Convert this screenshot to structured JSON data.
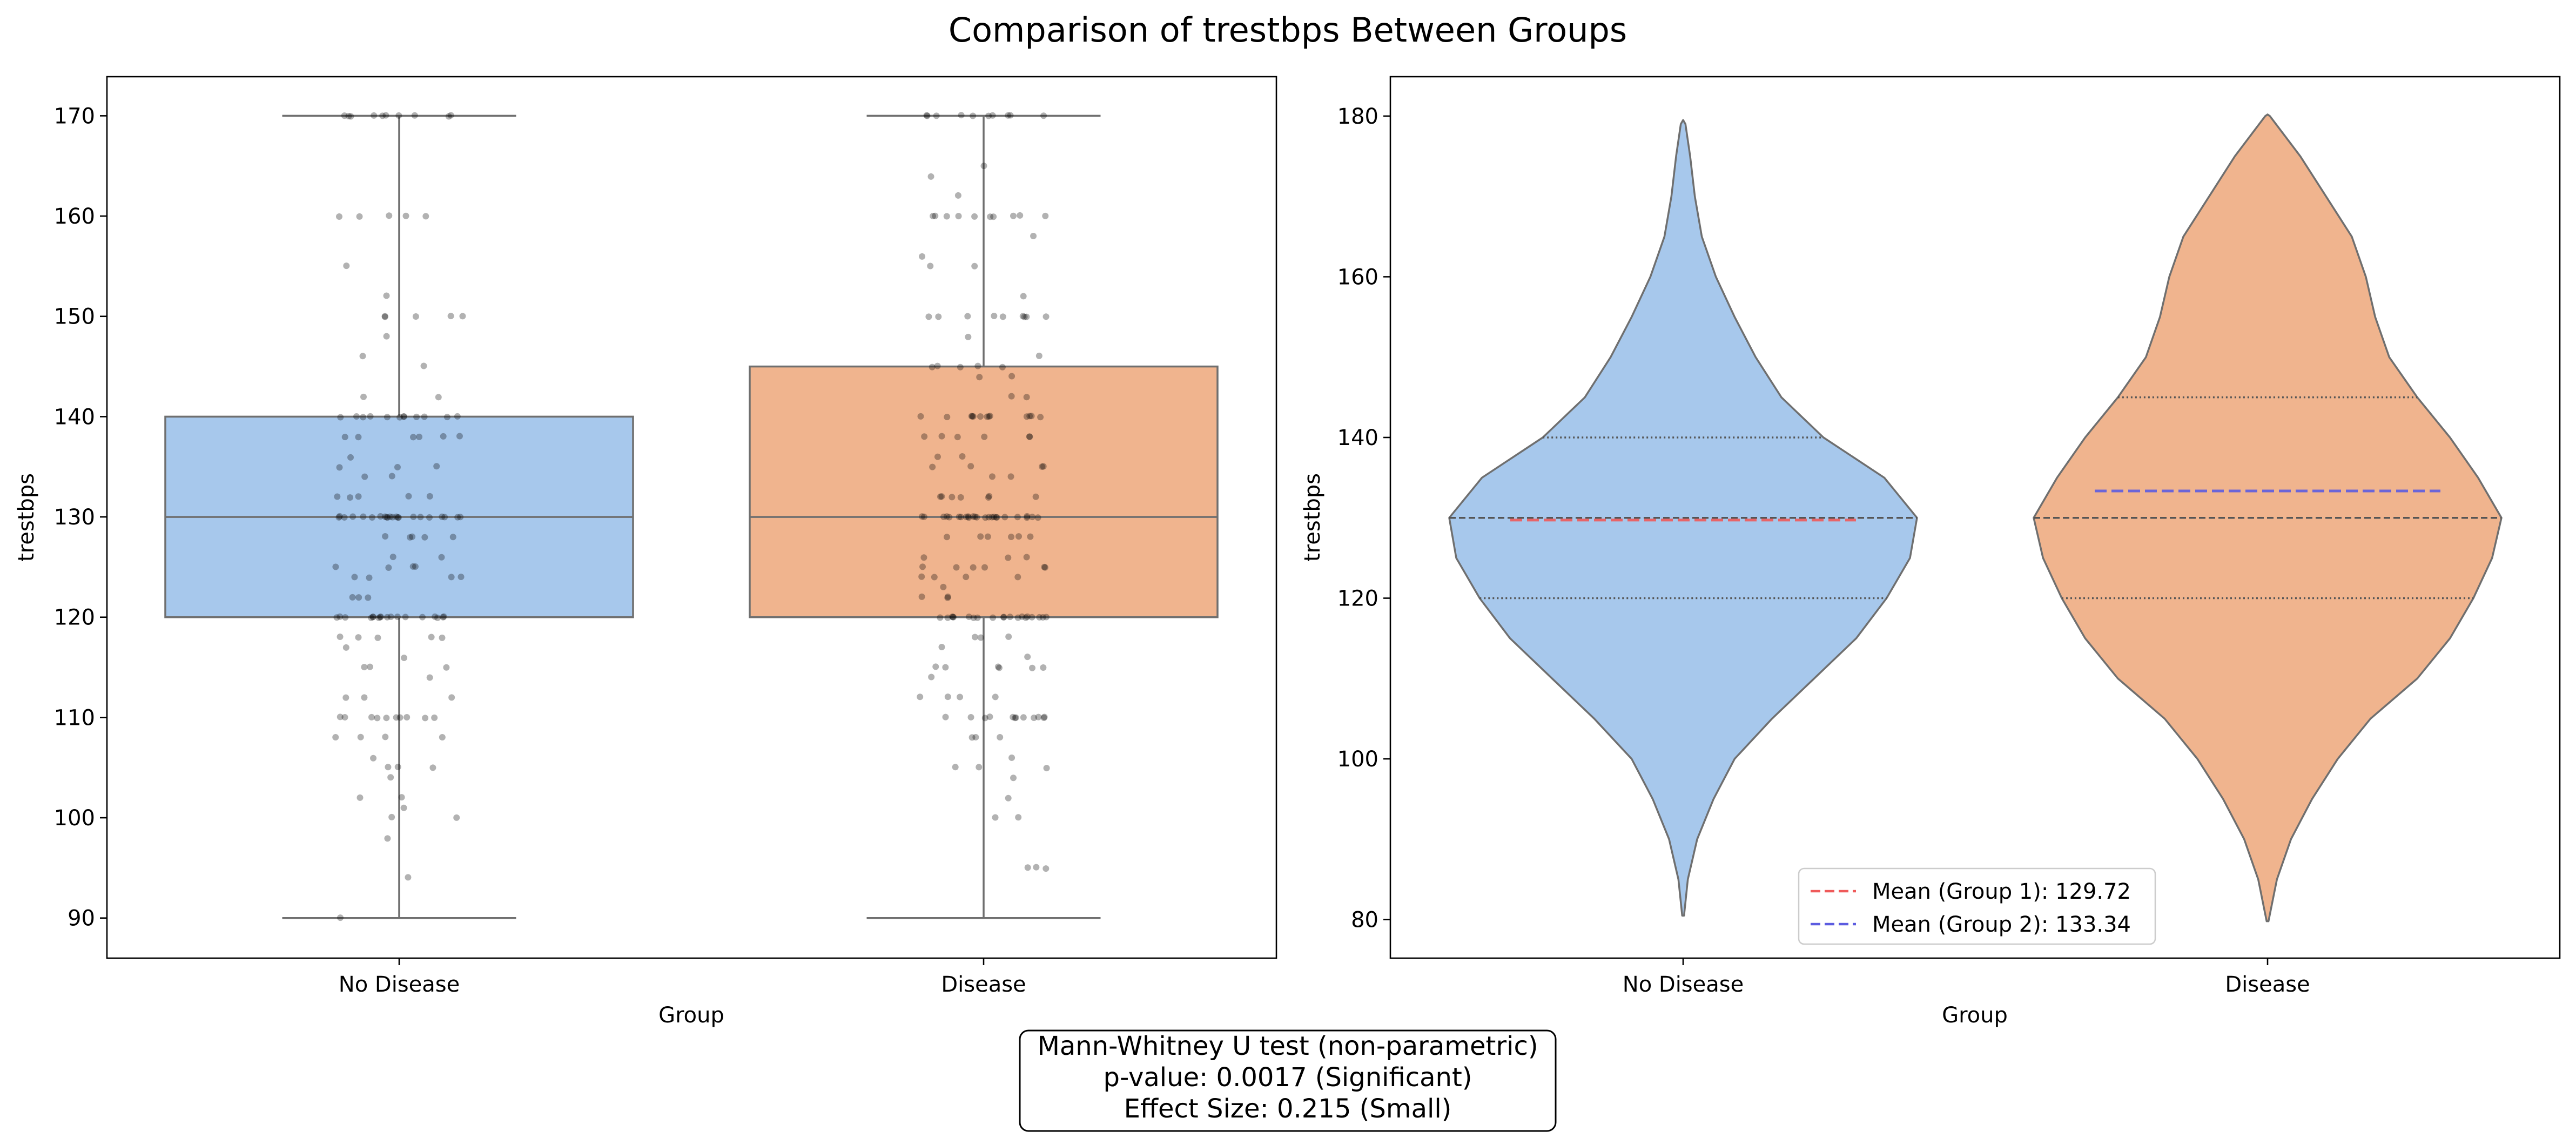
{
  "title": "Comparison of trestbps Between Groups",
  "colors": {
    "no_disease": "#a7c8ec",
    "disease": "#f0b48e",
    "frame": "#000000",
    "edge": "#6f6f6f",
    "mean1": "#ef5a5a",
    "mean2": "#5c5ce0"
  },
  "chart_data": [
    {
      "type": "box",
      "xlabel": "Group",
      "ylabel": "trestbps",
      "ylim": [
        86.0,
        173.9
      ],
      "yticks": [
        90,
        100,
        110,
        120,
        130,
        140,
        150,
        160,
        170
      ],
      "categories": [
        "No Disease",
        "Disease"
      ],
      "boxes": [
        {
          "name": "No Disease",
          "whisker_low": 90,
          "q1": 120,
          "median": 130,
          "q3": 140,
          "whisker_high": 170
        },
        {
          "name": "Disease",
          "whisker_low": 90,
          "q1": 120,
          "median": 130,
          "q3": 145,
          "whisker_high": 170
        }
      ],
      "points": [
        {
          "group": "No Disease",
          "values": [
            170,
            170,
            170,
            170,
            170,
            170,
            170,
            170,
            170,
            170,
            160,
            160,
            160,
            160,
            160,
            155,
            152,
            150,
            150,
            150,
            150,
            150,
            148,
            146,
            145,
            142,
            142,
            140,
            140,
            140,
            140,
            140,
            140,
            140,
            140,
            140,
            140,
            140,
            140,
            138,
            138,
            138,
            138,
            138,
            138,
            136,
            135,
            135,
            135,
            134,
            134,
            132,
            132,
            132,
            132,
            132,
            130,
            130,
            130,
            130,
            130,
            130,
            130,
            130,
            130,
            130,
            130,
            130,
            130,
            130,
            130,
            130,
            130,
            130,
            130,
            130,
            130,
            130,
            128,
            128,
            128,
            128,
            128,
            126,
            126,
            125,
            125,
            125,
            125,
            124,
            124,
            124,
            124,
            122,
            122,
            122,
            120,
            120,
            120,
            120,
            120,
            120,
            120,
            120,
            120,
            120,
            120,
            120,
            120,
            120,
            120,
            120,
            120,
            120,
            118,
            118,
            118,
            118,
            118,
            117,
            116,
            115,
            115,
            115,
            114,
            112,
            112,
            112,
            110,
            110,
            110,
            110,
            110,
            110,
            110,
            110,
            110,
            110,
            108,
            108,
            108,
            108,
            106,
            105,
            105,
            105,
            104,
            102,
            102,
            101,
            100,
            100,
            98,
            94,
            90
          ]
        },
        {
          "group": "Disease",
          "values": [
            170,
            170,
            170,
            170,
            170,
            170,
            170,
            170,
            170,
            170,
            165,
            164,
            162,
            160,
            160,
            160,
            160,
            160,
            160,
            160,
            160,
            160,
            160,
            158,
            156,
            155,
            155,
            152,
            150,
            150,
            150,
            150,
            150,
            150,
            150,
            150,
            150,
            148,
            146,
            145,
            145,
            145,
            145,
            145,
            144,
            144,
            142,
            142,
            140,
            140,
            140,
            140,
            140,
            140,
            140,
            140,
            140,
            140,
            140,
            140,
            140,
            138,
            138,
            138,
            138,
            138,
            138,
            136,
            136,
            135,
            135,
            135,
            135,
            134,
            134,
            132,
            132,
            132,
            132,
            132,
            132,
            132,
            130,
            130,
            130,
            130,
            130,
            130,
            130,
            130,
            130,
            130,
            130,
            130,
            130,
            130,
            130,
            130,
            130,
            130,
            130,
            130,
            130,
            130,
            130,
            130,
            130,
            128,
            128,
            128,
            128,
            128,
            128,
            126,
            126,
            126,
            125,
            125,
            125,
            125,
            125,
            125,
            124,
            124,
            124,
            124,
            123,
            122,
            122,
            122,
            120,
            120,
            120,
            120,
            120,
            120,
            120,
            120,
            120,
            120,
            120,
            120,
            120,
            120,
            120,
            120,
            120,
            120,
            120,
            120,
            118,
            118,
            118,
            117,
            116,
            115,
            115,
            115,
            115,
            115,
            115,
            114,
            112,
            112,
            112,
            112,
            110,
            110,
            110,
            110,
            110,
            110,
            110,
            110,
            110,
            110,
            110,
            110,
            108,
            108,
            108,
            106,
            105,
            105,
            105,
            104,
            102,
            100,
            100,
            95,
            95,
            95
          ]
        }
      ]
    },
    {
      "type": "violin",
      "xlabel": "Group",
      "ylabel": "trestbps",
      "ylim": [
        75.2,
        184.9
      ],
      "yticks": [
        80,
        100,
        120,
        140,
        160,
        180
      ],
      "categories": [
        "No Disease",
        "Disease"
      ],
      "violins": [
        {
          "name": "No Disease",
          "q1": 120,
          "median": 130,
          "q3": 140,
          "density": [
            [
              80.5,
              0.004
            ],
            [
              85,
              0.02
            ],
            [
              90,
              0.06
            ],
            [
              95,
              0.13
            ],
            [
              100,
              0.22
            ],
            [
              105,
              0.38
            ],
            [
              110,
              0.56
            ],
            [
              115,
              0.74
            ],
            [
              120,
              0.87
            ],
            [
              125,
              0.97
            ],
            [
              130,
              1.0
            ],
            [
              135,
              0.86
            ],
            [
              140,
              0.6
            ],
            [
              145,
              0.42
            ],
            [
              150,
              0.31
            ],
            [
              155,
              0.22
            ],
            [
              160,
              0.14
            ],
            [
              165,
              0.08
            ],
            [
              170,
              0.05
            ],
            [
              175,
              0.03
            ],
            [
              179,
              0.01
            ],
            [
              179.5,
              0.0
            ]
          ]
        },
        {
          "name": "Disease",
          "q1": 120,
          "median": 130,
          "q3": 145,
          "density": [
            [
              79.8,
              0.004
            ],
            [
              85,
              0.04
            ],
            [
              90,
              0.1
            ],
            [
              95,
              0.19
            ],
            [
              100,
              0.3
            ],
            [
              105,
              0.44
            ],
            [
              110,
              0.64
            ],
            [
              115,
              0.78
            ],
            [
              120,
              0.88
            ],
            [
              125,
              0.96
            ],
            [
              130,
              1.0
            ],
            [
              135,
              0.9
            ],
            [
              140,
              0.78
            ],
            [
              145,
              0.64
            ],
            [
              150,
              0.52
            ],
            [
              155,
              0.46
            ],
            [
              160,
              0.42
            ],
            [
              165,
              0.36
            ],
            [
              170,
              0.25
            ],
            [
              175,
              0.14
            ],
            [
              180,
              0.01
            ],
            [
              180.2,
              0.0
            ]
          ]
        }
      ],
      "means": [
        {
          "group": "No Disease",
          "value": 129.72,
          "label": "Mean (Group 1): 129.72"
        },
        {
          "group": "Disease",
          "value": 133.34,
          "label": "Mean (Group 2): 133.34"
        }
      ],
      "legend_position": "lower center"
    }
  ],
  "stats_box": {
    "line1": "Mann-Whitney U test (non-parametric)",
    "line2": "p-value: 0.0017 (Significant)",
    "line3": "Effect Size: 0.215 (Small)"
  }
}
